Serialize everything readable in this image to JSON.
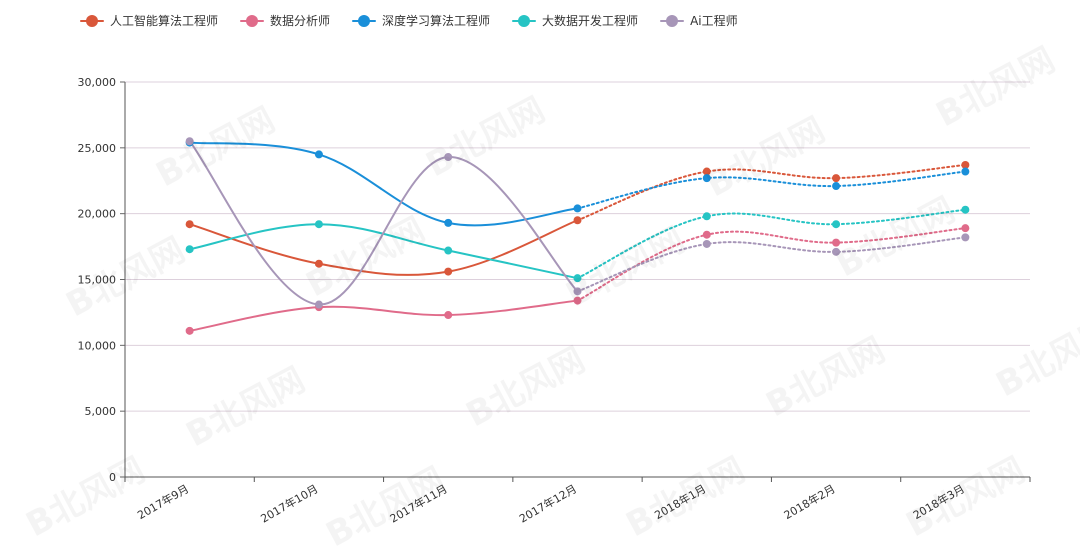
{
  "chart_data": {
    "type": "line",
    "categories": [
      "2017年9月",
      "2017年10月",
      "2017年11月",
      "2017年12月",
      "2018年1月",
      "2018年2月",
      "2018年3月"
    ],
    "ylim": [
      0,
      30000
    ],
    "yticks": [
      "0",
      "5,000",
      "10,000",
      "15,000",
      "20,000",
      "25,000",
      "30,000"
    ],
    "ytick_values": [
      0,
      5000,
      10000,
      15000,
      20000,
      25000,
      30000
    ],
    "projected_from_index": 3,
    "grid": true,
    "legend_position": "top-left",
    "series": [
      {
        "name": "人工智能算法工程师",
        "color": "#d9573a",
        "values": [
          19200,
          16200,
          15600,
          19500,
          23200,
          22700,
          23700
        ]
      },
      {
        "name": "数据分析师",
        "color": "#e06b8a",
        "values": [
          11100,
          12900,
          12300,
          13400,
          18400,
          17800,
          18900
        ]
      },
      {
        "name": "深度学习算法工程师",
        "color": "#1a8fd9",
        "values": [
          25400,
          24500,
          19300,
          20400,
          22700,
          22100,
          23200
        ]
      },
      {
        "name": "大数据开发工程师",
        "color": "#26c4c4",
        "values": [
          17300,
          19200,
          17200,
          15100,
          19800,
          19200,
          20300
        ]
      },
      {
        "name": "Ai工程师",
        "color": "#a796b8",
        "values": [
          25500,
          13100,
          24300,
          14100,
          17700,
          17100,
          18200
        ]
      }
    ]
  },
  "watermark": "B北风网"
}
